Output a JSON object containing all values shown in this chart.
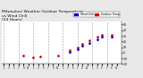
{
  "title": "Milwaukee Weather Outdoor Temperature",
  "title2": "vs Wind Chill",
  "title3": "(24 Hours)",
  "title_fontsize": 3.2,
  "background_color": "#e8e8e8",
  "plot_bg_color": "#ffffff",
  "legend_labels": [
    "Outdoor Temp",
    "Wind Chill"
  ],
  "legend_colors": [
    "#dd0000",
    "#0000cc"
  ],
  "x_positions": [
    1,
    2,
    3,
    4,
    5,
    6,
    7,
    8,
    9,
    10,
    11,
    12,
    13,
    14,
    15,
    16,
    17,
    18,
    19,
    20,
    21,
    22,
    23,
    24,
    25,
    26,
    27,
    28,
    29,
    30,
    31,
    32,
    33,
    34,
    35,
    36,
    37,
    38,
    39,
    40,
    41,
    42,
    43,
    44,
    45,
    46,
    47,
    48
  ],
  "temp": [
    null,
    null,
    null,
    null,
    null,
    null,
    null,
    null,
    -5,
    null,
    null,
    null,
    -8,
    null,
    null,
    -6,
    null,
    null,
    null,
    null,
    null,
    null,
    -5,
    null,
    null,
    null,
    null,
    5,
    null,
    null,
    10,
    null,
    16,
    null,
    null,
    22,
    null,
    null,
    28,
    null,
    32,
    null,
    null,
    null,
    32,
    null,
    null,
    null
  ],
  "wind_chill": [
    null,
    null,
    null,
    null,
    null,
    null,
    null,
    null,
    null,
    null,
    null,
    null,
    null,
    null,
    null,
    null,
    null,
    null,
    null,
    null,
    null,
    null,
    null,
    null,
    null,
    null,
    null,
    2,
    null,
    null,
    6,
    null,
    12,
    null,
    null,
    18,
    null,
    null,
    24,
    null,
    28,
    null,
    null,
    null,
    28,
    null,
    null,
    null
  ],
  "ylim": [
    -20,
    55
  ],
  "yticks": [
    -20,
    -10,
    0,
    10,
    20,
    30,
    40,
    50
  ],
  "ytick_labels": [
    "-20",
    "-10",
    "0",
    "10",
    "20",
    "30",
    "40",
    "50"
  ],
  "xlim": [
    0,
    49
  ],
  "grid_positions": [
    1,
    7,
    13,
    19,
    25,
    31,
    37,
    43,
    49
  ],
  "xtick_positions": [
    1,
    3,
    5,
    7,
    9,
    11,
    13,
    15,
    17,
    19,
    21,
    23,
    25,
    27,
    29,
    31,
    33,
    35,
    37,
    39,
    41,
    43,
    45,
    47
  ],
  "xtick_labels": [
    "1",
    "3",
    "5",
    "7",
    "9",
    "11",
    "1",
    "3",
    "5",
    "7",
    "9",
    "11",
    "1",
    "3",
    "5",
    "7",
    "9",
    "11",
    "1",
    "3",
    "5",
    "7",
    "9",
    "11"
  ],
  "grid_color": "#999999",
  "dot_size": 4,
  "temp_color": "#dd0000",
  "wind_color": "#0000cc"
}
